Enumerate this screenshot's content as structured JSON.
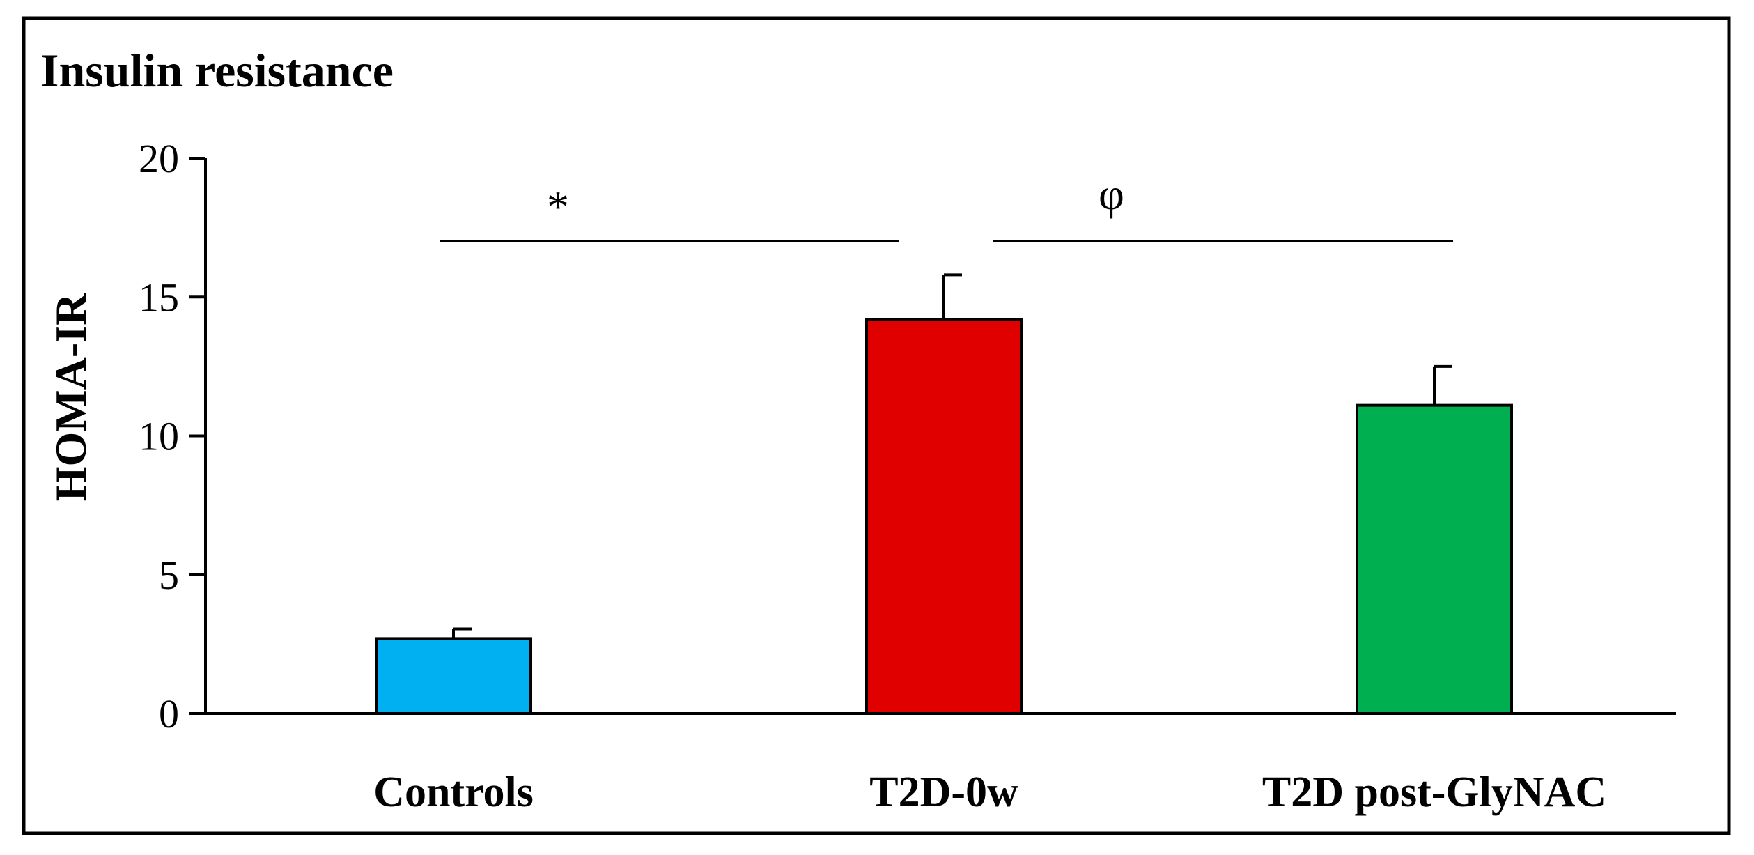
{
  "chart_data": {
    "type": "bar",
    "title": "Insulin resistance",
    "xlabel": "",
    "ylabel": "HOMA-IR",
    "ylim": [
      0,
      20
    ],
    "yticks": [
      "0",
      "5",
      "10",
      "15",
      "20"
    ],
    "ytick_values": [
      0,
      5,
      10,
      15,
      20
    ],
    "categories": [
      "Controls",
      "T2D-0w",
      "T2D post-GlyNAC"
    ],
    "values": [
      2.7,
      14.2,
      11.1
    ],
    "errors": [
      0.35,
      1.6,
      1.4
    ],
    "colors": [
      "#00B0F0",
      "#E00000",
      "#00B050"
    ],
    "grid": false,
    "significance": [
      {
        "symbol": "*",
        "from": 0,
        "to": 1
      },
      {
        "symbol": "φ",
        "from": 1,
        "to": 2
      }
    ]
  }
}
